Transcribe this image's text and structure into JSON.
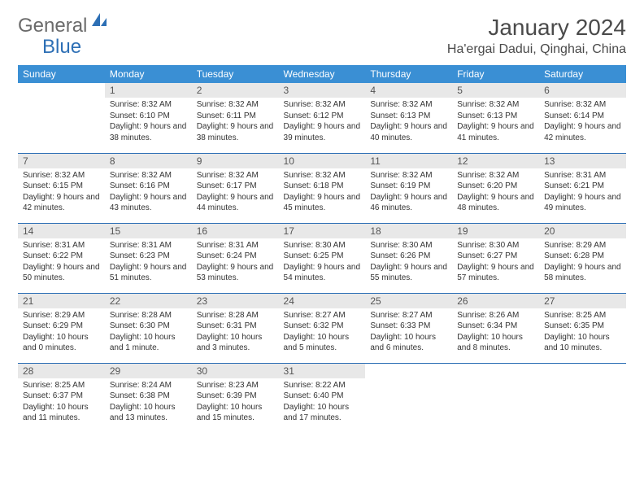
{
  "brand": {
    "part1": "General",
    "part2": "Blue"
  },
  "title": "January 2024",
  "location": "Ha'ergai Dadui, Qinghai, China",
  "colors": {
    "header_bg": "#3a8fd4",
    "rule": "#2d6fb5",
    "daynum_bg": "#e8e8e8",
    "text": "#333333",
    "title_text": "#4a4a4a"
  },
  "daysOfWeek": [
    "Sunday",
    "Monday",
    "Tuesday",
    "Wednesday",
    "Thursday",
    "Friday",
    "Saturday"
  ],
  "weeks": [
    [
      null,
      {
        "n": "1",
        "sr": "Sunrise: 8:32 AM",
        "ss": "Sunset: 6:10 PM",
        "dl": "Daylight: 9 hours and 38 minutes."
      },
      {
        "n": "2",
        "sr": "Sunrise: 8:32 AM",
        "ss": "Sunset: 6:11 PM",
        "dl": "Daylight: 9 hours and 38 minutes."
      },
      {
        "n": "3",
        "sr": "Sunrise: 8:32 AM",
        "ss": "Sunset: 6:12 PM",
        "dl": "Daylight: 9 hours and 39 minutes."
      },
      {
        "n": "4",
        "sr": "Sunrise: 8:32 AM",
        "ss": "Sunset: 6:13 PM",
        "dl": "Daylight: 9 hours and 40 minutes."
      },
      {
        "n": "5",
        "sr": "Sunrise: 8:32 AM",
        "ss": "Sunset: 6:13 PM",
        "dl": "Daylight: 9 hours and 41 minutes."
      },
      {
        "n": "6",
        "sr": "Sunrise: 8:32 AM",
        "ss": "Sunset: 6:14 PM",
        "dl": "Daylight: 9 hours and 42 minutes."
      }
    ],
    [
      {
        "n": "7",
        "sr": "Sunrise: 8:32 AM",
        "ss": "Sunset: 6:15 PM",
        "dl": "Daylight: 9 hours and 42 minutes."
      },
      {
        "n": "8",
        "sr": "Sunrise: 8:32 AM",
        "ss": "Sunset: 6:16 PM",
        "dl": "Daylight: 9 hours and 43 minutes."
      },
      {
        "n": "9",
        "sr": "Sunrise: 8:32 AM",
        "ss": "Sunset: 6:17 PM",
        "dl": "Daylight: 9 hours and 44 minutes."
      },
      {
        "n": "10",
        "sr": "Sunrise: 8:32 AM",
        "ss": "Sunset: 6:18 PM",
        "dl": "Daylight: 9 hours and 45 minutes."
      },
      {
        "n": "11",
        "sr": "Sunrise: 8:32 AM",
        "ss": "Sunset: 6:19 PM",
        "dl": "Daylight: 9 hours and 46 minutes."
      },
      {
        "n": "12",
        "sr": "Sunrise: 8:32 AM",
        "ss": "Sunset: 6:20 PM",
        "dl": "Daylight: 9 hours and 48 minutes."
      },
      {
        "n": "13",
        "sr": "Sunrise: 8:31 AM",
        "ss": "Sunset: 6:21 PM",
        "dl": "Daylight: 9 hours and 49 minutes."
      }
    ],
    [
      {
        "n": "14",
        "sr": "Sunrise: 8:31 AM",
        "ss": "Sunset: 6:22 PM",
        "dl": "Daylight: 9 hours and 50 minutes."
      },
      {
        "n": "15",
        "sr": "Sunrise: 8:31 AM",
        "ss": "Sunset: 6:23 PM",
        "dl": "Daylight: 9 hours and 51 minutes."
      },
      {
        "n": "16",
        "sr": "Sunrise: 8:31 AM",
        "ss": "Sunset: 6:24 PM",
        "dl": "Daylight: 9 hours and 53 minutes."
      },
      {
        "n": "17",
        "sr": "Sunrise: 8:30 AM",
        "ss": "Sunset: 6:25 PM",
        "dl": "Daylight: 9 hours and 54 minutes."
      },
      {
        "n": "18",
        "sr": "Sunrise: 8:30 AM",
        "ss": "Sunset: 6:26 PM",
        "dl": "Daylight: 9 hours and 55 minutes."
      },
      {
        "n": "19",
        "sr": "Sunrise: 8:30 AM",
        "ss": "Sunset: 6:27 PM",
        "dl": "Daylight: 9 hours and 57 minutes."
      },
      {
        "n": "20",
        "sr": "Sunrise: 8:29 AM",
        "ss": "Sunset: 6:28 PM",
        "dl": "Daylight: 9 hours and 58 minutes."
      }
    ],
    [
      {
        "n": "21",
        "sr": "Sunrise: 8:29 AM",
        "ss": "Sunset: 6:29 PM",
        "dl": "Daylight: 10 hours and 0 minutes."
      },
      {
        "n": "22",
        "sr": "Sunrise: 8:28 AM",
        "ss": "Sunset: 6:30 PM",
        "dl": "Daylight: 10 hours and 1 minute."
      },
      {
        "n": "23",
        "sr": "Sunrise: 8:28 AM",
        "ss": "Sunset: 6:31 PM",
        "dl": "Daylight: 10 hours and 3 minutes."
      },
      {
        "n": "24",
        "sr": "Sunrise: 8:27 AM",
        "ss": "Sunset: 6:32 PM",
        "dl": "Daylight: 10 hours and 5 minutes."
      },
      {
        "n": "25",
        "sr": "Sunrise: 8:27 AM",
        "ss": "Sunset: 6:33 PM",
        "dl": "Daylight: 10 hours and 6 minutes."
      },
      {
        "n": "26",
        "sr": "Sunrise: 8:26 AM",
        "ss": "Sunset: 6:34 PM",
        "dl": "Daylight: 10 hours and 8 minutes."
      },
      {
        "n": "27",
        "sr": "Sunrise: 8:25 AM",
        "ss": "Sunset: 6:35 PM",
        "dl": "Daylight: 10 hours and 10 minutes."
      }
    ],
    [
      {
        "n": "28",
        "sr": "Sunrise: 8:25 AM",
        "ss": "Sunset: 6:37 PM",
        "dl": "Daylight: 10 hours and 11 minutes."
      },
      {
        "n": "29",
        "sr": "Sunrise: 8:24 AM",
        "ss": "Sunset: 6:38 PM",
        "dl": "Daylight: 10 hours and 13 minutes."
      },
      {
        "n": "30",
        "sr": "Sunrise: 8:23 AM",
        "ss": "Sunset: 6:39 PM",
        "dl": "Daylight: 10 hours and 15 minutes."
      },
      {
        "n": "31",
        "sr": "Sunrise: 8:22 AM",
        "ss": "Sunset: 6:40 PM",
        "dl": "Daylight: 10 hours and 17 minutes."
      },
      null,
      null,
      null
    ]
  ]
}
